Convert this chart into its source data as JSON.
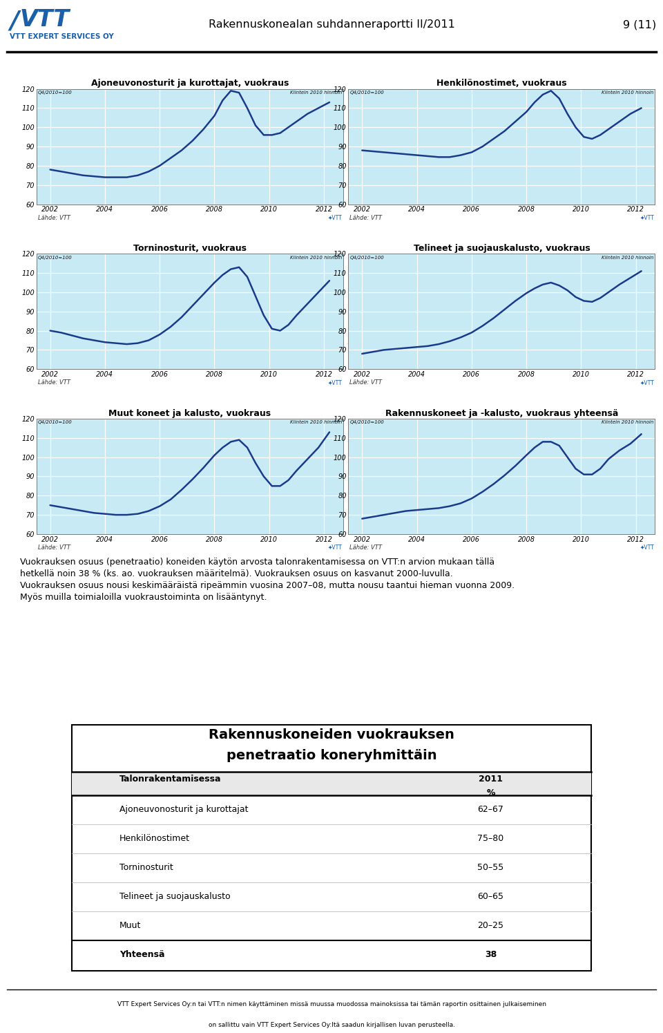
{
  "page_title": "Rakennuskonealan suhdanneraportti II/2011",
  "page_number": "9 (11)",
  "chart_bg": "#c8eaf5",
  "line_color": "#1a3a8a",
  "ylabel_left_label": "Q4/2010=100",
  "ylabel_right_label": "Kiintein 2010 hinnoin",
  "chart_titles": [
    "Ajoneuvonosturit ja kurottajat, vuokraus",
    "Henkilönostimet, vuokraus",
    "Torninosturit, vuokraus",
    "Telineet ja suojauskalusto, vuokraus",
    "Muut koneet ja kalusto, vuokraus",
    "Rakennuskoneet ja -kalusto, vuokraus yhteensä"
  ],
  "chart_data": [
    {
      "x": [
        2002.0,
        2002.4,
        2002.8,
        2003.2,
        2003.6,
        2004.0,
        2004.4,
        2004.8,
        2005.2,
        2005.6,
        2006.0,
        2006.4,
        2006.8,
        2007.2,
        2007.6,
        2008.0,
        2008.3,
        2008.6,
        2008.9,
        2009.2,
        2009.5,
        2009.8,
        2010.1,
        2010.4,
        2010.7,
        2011.0,
        2011.4,
        2011.8,
        2012.2
      ],
      "y": [
        78,
        77,
        76,
        75,
        74.5,
        74,
        74,
        74,
        75,
        77,
        80,
        84,
        88,
        93,
        99,
        106,
        114,
        119,
        118,
        110,
        101,
        96,
        96,
        97,
        100,
        103,
        107,
        110,
        113
      ]
    },
    {
      "x": [
        2002.0,
        2002.4,
        2002.8,
        2003.2,
        2003.6,
        2004.0,
        2004.4,
        2004.8,
        2005.2,
        2005.6,
        2006.0,
        2006.4,
        2006.8,
        2007.2,
        2007.6,
        2008.0,
        2008.3,
        2008.6,
        2008.9,
        2009.2,
        2009.5,
        2009.8,
        2010.1,
        2010.4,
        2010.7,
        2011.0,
        2011.4,
        2011.8,
        2012.2
      ],
      "y": [
        88,
        87.5,
        87,
        86.5,
        86,
        85.5,
        85,
        84.5,
        84.5,
        85.5,
        87,
        90,
        94,
        98,
        103,
        108,
        113,
        117,
        119,
        115,
        107,
        100,
        95,
        94,
        96,
        99,
        103,
        107,
        110
      ]
    },
    {
      "x": [
        2002.0,
        2002.4,
        2002.8,
        2003.2,
        2003.6,
        2004.0,
        2004.4,
        2004.8,
        2005.2,
        2005.6,
        2006.0,
        2006.4,
        2006.8,
        2007.2,
        2007.6,
        2008.0,
        2008.3,
        2008.6,
        2008.9,
        2009.2,
        2009.5,
        2009.8,
        2010.1,
        2010.4,
        2010.7,
        2011.0,
        2011.4,
        2011.8,
        2012.2
      ],
      "y": [
        80,
        79,
        77.5,
        76,
        75,
        74,
        73.5,
        73,
        73.5,
        75,
        78,
        82,
        87,
        93,
        99,
        105,
        109,
        112,
        113,
        108,
        98,
        88,
        81,
        80,
        83,
        88,
        94,
        100,
        106
      ]
    },
    {
      "x": [
        2002.0,
        2002.4,
        2002.8,
        2003.2,
        2003.6,
        2004.0,
        2004.4,
        2004.8,
        2005.2,
        2005.6,
        2006.0,
        2006.4,
        2006.8,
        2007.2,
        2007.6,
        2008.0,
        2008.3,
        2008.6,
        2008.9,
        2009.2,
        2009.5,
        2009.8,
        2010.1,
        2010.4,
        2010.7,
        2011.0,
        2011.4,
        2011.8,
        2012.2
      ],
      "y": [
        68,
        69,
        70,
        70.5,
        71,
        71.5,
        72,
        73,
        74.5,
        76.5,
        79,
        82.5,
        86.5,
        91,
        95.5,
        99.5,
        102,
        104,
        105,
        103.5,
        101,
        97.5,
        95.5,
        95,
        97,
        100,
        104,
        107.5,
        111
      ]
    },
    {
      "x": [
        2002.0,
        2002.4,
        2002.8,
        2003.2,
        2003.6,
        2004.0,
        2004.4,
        2004.8,
        2005.2,
        2005.6,
        2006.0,
        2006.4,
        2006.8,
        2007.2,
        2007.6,
        2008.0,
        2008.3,
        2008.6,
        2008.9,
        2009.2,
        2009.5,
        2009.8,
        2010.1,
        2010.4,
        2010.7,
        2011.0,
        2011.4,
        2011.8,
        2012.2
      ],
      "y": [
        75,
        74,
        73,
        72,
        71,
        70.5,
        70,
        70,
        70.5,
        72,
        74.5,
        78,
        83,
        88.5,
        94.5,
        101,
        105,
        108,
        109,
        105,
        97,
        90,
        85,
        85,
        88,
        93,
        99,
        105,
        113
      ]
    },
    {
      "x": [
        2002.0,
        2002.4,
        2002.8,
        2003.2,
        2003.6,
        2004.0,
        2004.4,
        2004.8,
        2005.2,
        2005.6,
        2006.0,
        2006.4,
        2006.8,
        2007.2,
        2007.6,
        2008.0,
        2008.3,
        2008.6,
        2008.9,
        2009.2,
        2009.5,
        2009.8,
        2010.1,
        2010.4,
        2010.7,
        2011.0,
        2011.4,
        2011.8,
        2012.2
      ],
      "y": [
        68,
        69,
        70,
        71,
        72,
        72.5,
        73,
        73.5,
        74.5,
        76,
        78.5,
        82,
        86,
        90.5,
        95.5,
        101,
        105,
        108,
        108,
        106,
        100,
        94,
        91,
        91,
        94,
        99,
        103.5,
        107,
        112
      ]
    }
  ],
  "xtick_vals": [
    2002,
    2004,
    2006,
    2008,
    2010,
    2012
  ],
  "xtick_labels": [
    "2002",
    "2004",
    "2006",
    "2008",
    "2010",
    "2012"
  ],
  "yticks": [
    60,
    70,
    80,
    90,
    100,
    110,
    120
  ],
  "source_text": "Lähde: VTT",
  "body_text": "Vuokrauksen osuus (penetraatio) koneiden käytön arvosta talonrakentamisessa on VTT:n arvion mukaan tällä hetkellä noin 38 % (ks. ao. vuokrauksen määritelmä). Vuokrauksen osuus on kasvanut 2000-luvulla. Vuokrauksen osuus nousi keskimääräistä ripeämmin vuosina 2007–08, mutta nousu taantui hieman vuonna 2009. Myös muilla toimialoilla vuokraustoiminta on lisääntynyt.",
  "table_title_line1": "Rakennuskoneiden vuokrauksen",
  "table_title_line2": "penetraatio koneryhmittäin",
  "table_col1_header": "Talonrakentamisessa",
  "table_col2_header_line1": "2011",
  "table_col2_header_line2": "%",
  "table_rows": [
    [
      "Ajoneuvonosturit ja kurottajat",
      "62–67"
    ],
    [
      "Henkilönostimet",
      "75–80"
    ],
    [
      "Torninosturit",
      "50–55"
    ],
    [
      "Telineet ja suojauskalusto",
      "60–65"
    ],
    [
      "Muut",
      "20–25"
    ],
    [
      "Yhteensä",
      "38"
    ]
  ],
  "footer_text_line1": "VTT Expert Services Oy:n tai VTT:n nimen käyttäminen missä muussa muodossa mainoksissa tai tämän raportin osittainen julkaiseminen",
  "footer_text_line2": "on sallittu vain VTT Expert Services Oy:ltä saadun kirjallisen luvan perusteella."
}
